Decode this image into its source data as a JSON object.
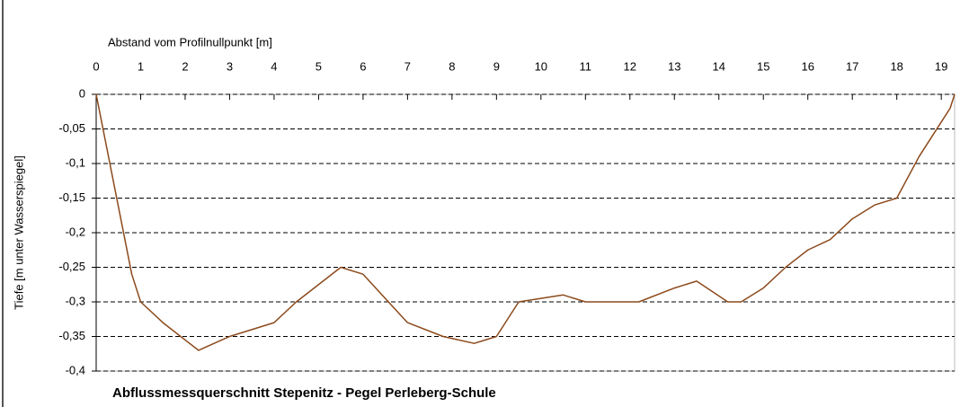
{
  "chart_data": {
    "type": "line",
    "title": "Abflussmessquerschnitt Stepenitz - Pegel Perleberg-Schule",
    "xlabel": "Abstand vom Profilnullpunkt [m]",
    "ylabel": "Tiefe [m unter Wasserspiegel]",
    "x": [
      0,
      0.8,
      1,
      1.5,
      2.3,
      3,
      4,
      4.5,
      5.5,
      6,
      7,
      7.8,
      8.5,
      9,
      9.5,
      10.5,
      11,
      11.8,
      12.2,
      13,
      13.5,
      14.2,
      14.5,
      15,
      15.5,
      16,
      16.5,
      17,
      17.5,
      18,
      18.5,
      19,
      19.2,
      19.3
    ],
    "values": [
      0,
      -0.26,
      -0.3,
      -0.33,
      -0.37,
      -0.35,
      -0.33,
      -0.3,
      -0.25,
      -0.26,
      -0.33,
      -0.35,
      -0.36,
      -0.35,
      -0.3,
      -0.29,
      -0.3,
      -0.3,
      -0.3,
      -0.28,
      -0.27,
      -0.3,
      -0.3,
      -0.28,
      -0.25,
      -0.225,
      -0.21,
      -0.18,
      -0.16,
      -0.15,
      -0.09,
      -0.04,
      -0.02,
      0
    ],
    "color": "#8c4a1c",
    "xlim": [
      0,
      19.3
    ],
    "xticks": [
      0,
      1,
      2,
      3,
      4,
      5,
      6,
      7,
      8,
      9,
      10,
      11,
      12,
      13,
      14,
      15,
      16,
      17,
      18,
      19
    ],
    "ylim": [
      -0.4,
      0
    ],
    "yticks": [
      0,
      {
        "value": -0.05,
        "label": "-0,05"
      },
      {
        "value": -0.1,
        "label": "-0,1"
      },
      {
        "value": -0.15,
        "label": "-0,15"
      },
      {
        "value": -0.2,
        "label": "-0,2"
      },
      {
        "value": -0.25,
        "label": "-0,25"
      },
      {
        "value": -0.3,
        "label": "-0,3"
      },
      {
        "value": -0.35,
        "label": "-0,35"
      },
      {
        "value": -0.4,
        "label": "-0,4"
      }
    ],
    "grid": true
  }
}
